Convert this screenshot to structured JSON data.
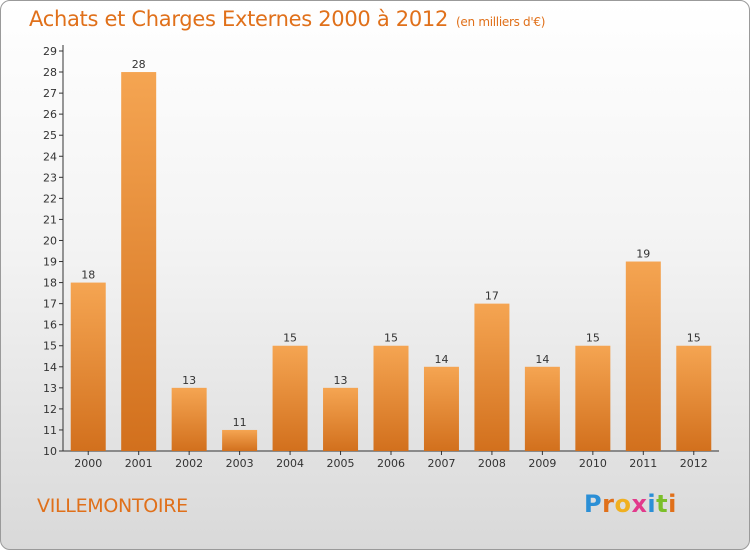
{
  "header": {
    "title": "Achats et Charges Externes 2000 à 2012",
    "subtitle": "(en milliers d'€)"
  },
  "footer": {
    "commune": "VILLEMONTOIRE",
    "logo_letters": [
      {
        "ch": "P",
        "color": "#2b8fd6"
      },
      {
        "ch": "r",
        "color": "#e0701a"
      },
      {
        "ch": "o",
        "color": "#f0b020"
      },
      {
        "ch": "x",
        "color": "#e23a8c"
      },
      {
        "ch": "i",
        "color": "#2b8fd6"
      },
      {
        "ch": "t",
        "color": "#7bbf2a"
      },
      {
        "ch": "i",
        "color": "#e0701a"
      }
    ]
  },
  "chart_data": {
    "type": "bar",
    "title": "Achats et Charges Externes 2000 à 2012",
    "subtitle": "(en milliers d'€)",
    "categories": [
      "2000",
      "2001",
      "2002",
      "2003",
      "2004",
      "2005",
      "2006",
      "2007",
      "2008",
      "2009",
      "2010",
      "2011",
      "2012"
    ],
    "values": [
      18,
      28,
      13,
      11,
      15,
      13,
      15,
      14,
      17,
      14,
      15,
      19,
      15
    ],
    "ylim": [
      10,
      29
    ],
    "yticks": [
      10,
      11,
      12,
      13,
      14,
      15,
      16,
      17,
      18,
      19,
      20,
      21,
      22,
      23,
      24,
      25,
      26,
      27,
      28,
      29
    ],
    "grid": false,
    "colors": {
      "bar_top": "#f5a552",
      "bar_bottom": "#d2701d",
      "axis": "#333333"
    }
  }
}
